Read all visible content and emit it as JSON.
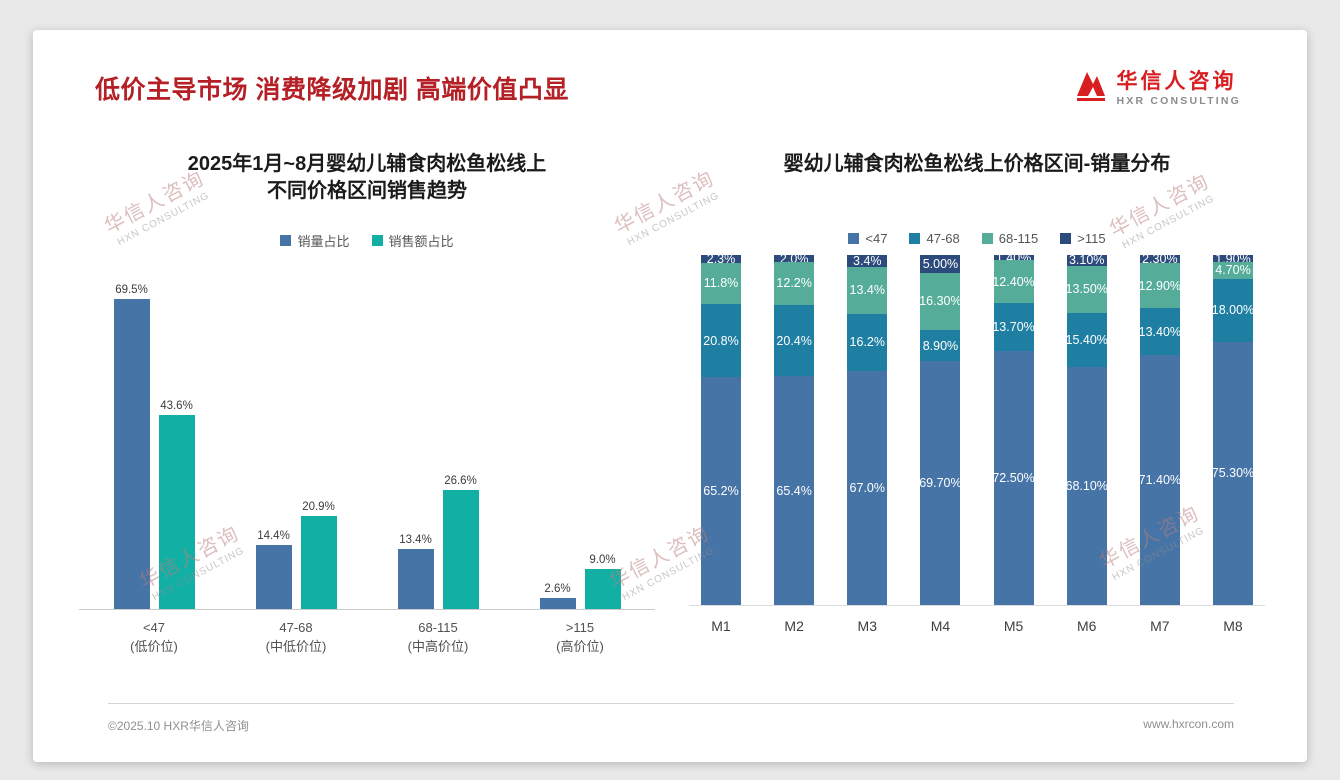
{
  "page": {
    "title": "低价主导市场 消费降级加剧 高端价值凸显",
    "logo": {
      "name": "华信人咨询",
      "sub": "HXR CONSULTING"
    },
    "watermark": {
      "line1": "华信人咨询",
      "line2": "HXN CONSULTING"
    },
    "footer": {
      "left": "©2025.10 HXR华信人咨询",
      "right": "www.hxrcon.com"
    },
    "colors": {
      "title_red": "#b42025",
      "logo_red": "#d81e20"
    }
  },
  "chart_data": [
    {
      "type": "bar",
      "title": "2025年1月~8月婴幼儿辅食肉松鱼松线上不同价格区间销售趋势",
      "title_lines": [
        "2025年1月~8月婴幼儿辅食肉松鱼松线上",
        "不同价格区间销售趋势"
      ],
      "categories": [
        "<47",
        "47-68",
        "68-115",
        ">115"
      ],
      "category_sublabels": [
        "(低价位)",
        "(中低价位)",
        "(中高价位)",
        "(高价位)"
      ],
      "series": [
        {
          "name": "销量占比",
          "color": "#4674a6",
          "values": [
            69.5,
            14.4,
            13.4,
            2.6
          ],
          "labels": [
            "69.5%",
            "14.4%",
            "13.4%",
            "2.6%"
          ]
        },
        {
          "name": "销售额占比",
          "color": "#12b0a4",
          "values": [
            43.6,
            20.9,
            26.6,
            9.0
          ],
          "labels": [
            "43.6%",
            "20.9%",
            "26.6%",
            "9.0%"
          ]
        }
      ],
      "ylim": [
        0,
        75
      ],
      "grid": false,
      "legend_position": "top",
      "value_suffix": "%"
    },
    {
      "type": "stacked-bar",
      "title": "婴幼儿辅食肉松鱼松线上价格区间-销量分布",
      "categories": [
        "M1",
        "M2",
        "M3",
        "M4",
        "M5",
        "M6",
        "M7",
        "M8"
      ],
      "series": [
        {
          "name": "<47",
          "color": "#4674a6",
          "values": [
            65.2,
            65.4,
            67.0,
            69.7,
            72.5,
            68.1,
            71.4,
            75.3
          ],
          "labels": [
            "65.2%",
            "65.4%",
            "67.0%",
            "69.70%",
            "72.50%",
            "68.10%",
            "71.40%",
            "75.30%"
          ]
        },
        {
          "name": "47-68",
          "color": "#1f7fa2",
          "values": [
            20.8,
            20.4,
            16.2,
            8.9,
            13.7,
            15.4,
            13.4,
            18.0
          ],
          "labels": [
            "20.8%",
            "20.4%",
            "16.2%",
            "8.90%",
            "13.70%",
            "15.40%",
            "13.40%",
            "18.00%"
          ]
        },
        {
          "name": "68-115",
          "color": "#55ad99",
          "values": [
            11.8,
            12.2,
            13.4,
            16.3,
            12.4,
            13.5,
            12.9,
            4.7
          ],
          "labels": [
            "11.8%",
            "12.2%",
            "13.4%",
            "16.30%",
            "12.40%",
            "13.50%",
            "12.90%",
            "4.70%"
          ]
        },
        {
          "name": ">115",
          "color": "#2c4b7c",
          "values": [
            2.3,
            2.0,
            3.4,
            5.0,
            1.4,
            3.1,
            2.3,
            1.9
          ],
          "labels": [
            "2.3%",
            "2.0%",
            "3.4%",
            "5.00%",
            "1.40%",
            "3.10%",
            "2.30%",
            "1.90%"
          ]
        }
      ],
      "ylim": [
        0,
        100
      ],
      "grid": false,
      "legend_position": "top",
      "value_suffix": "%"
    }
  ]
}
